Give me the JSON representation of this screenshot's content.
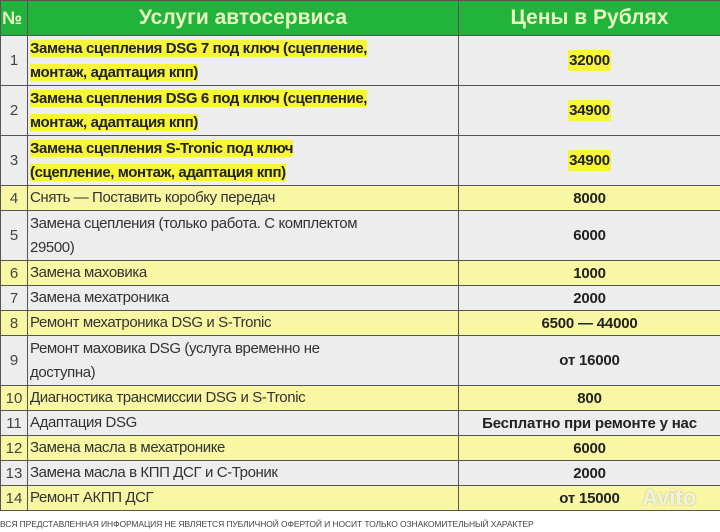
{
  "header": {
    "num": "№",
    "service": "Услуги автосервиса",
    "price": "Цены в Рублях"
  },
  "colors": {
    "header_bg": "#22b33c",
    "row_yellow": "#f8f8a4",
    "row_gray": "#ededed",
    "highlight": "#f6f53a"
  },
  "rows": [
    {
      "num": "1",
      "service": "Замена сцепления DSG 7 под ключ (сцепление,\nмонтаж, адаптация кпп)",
      "price": "32000",
      "style": "gray",
      "highlight": true
    },
    {
      "num": "2",
      "service": "Замена сцепления DSG 6 под ключ (сцепление,\nмонтаж, адаптация кпп)",
      "price": "34900",
      "style": "gray",
      "highlight": true
    },
    {
      "num": "3",
      "service": "Замена сцепления S-Tronic под ключ\n(сцепление, монтаж, адаптация кпп)",
      "price": "34900",
      "style": "gray",
      "highlight": true
    },
    {
      "num": "4",
      "service": "Снять — Поставить коробку передач",
      "price": "8000",
      "style": "yellow"
    },
    {
      "num": "5",
      "service": "Замена сцепления (только работа. С комплектом\n29500)",
      "price": "6000",
      "style": "gray"
    },
    {
      "num": "6",
      "service": "Замена маховика",
      "price": "1000",
      "style": "yellow"
    },
    {
      "num": "7",
      "service": "Замена мехатроника",
      "price": "2000",
      "style": "gray"
    },
    {
      "num": "8",
      "service": "Ремонт мехатроника DSG и S-Tronic",
      "price": "6500 — 44000",
      "style": "yellow"
    },
    {
      "num": "9",
      "service": "Ремонт маховика DSG (услуга временно не\nдоступна)",
      "price": "от 16000",
      "style": "gray"
    },
    {
      "num": "10",
      "service": "Диагностика трансмиссии DSG и S-Tronic",
      "price": "800",
      "style": "yellow"
    },
    {
      "num": "11",
      "service": "Адаптация DSG",
      "price": "Бесплатно при ремонте у нас",
      "style": "gray"
    },
    {
      "num": "12",
      "service": "Замена масла в мехатронике",
      "price": "6000",
      "style": "yellow"
    },
    {
      "num": "13",
      "service": "Замена масла в КПП ДСГ и С-Троник",
      "price": "2000",
      "style": "gray"
    },
    {
      "num": "14",
      "service": "Ремонт АКПП ДСГ",
      "price": "от 15000",
      "style": "yellow"
    }
  ],
  "footer": "ВСЯ ПРЕДСТАВЛЕННАЯ ИНФОРМАЦИЯ НЕ ЯВЛЯЕТСЯ ПУБЛИЧНОЙ ОФЕРТОЙ И НОСИТ ТОЛЬКО ОЗНАКОМИТЕЛЬНЫЙ ХАРАКТЕР",
  "watermark": "Avito"
}
